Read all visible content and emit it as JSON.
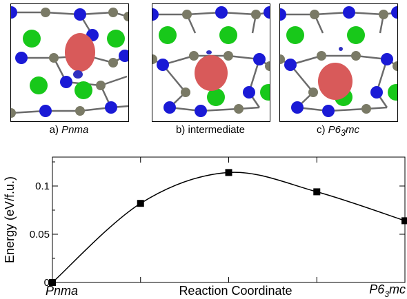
{
  "panels": [
    {
      "letter": "a)",
      "label": "Pnma",
      "label_sub": "",
      "label_tail": "",
      "italic": true
    },
    {
      "letter": "b)",
      "label": "intermediate",
      "label_sub": "",
      "label_tail": "",
      "italic": false
    },
    {
      "letter": "c)",
      "label": "P6",
      "label_sub": "3",
      "label_tail": "mc",
      "italic": true
    }
  ],
  "colors": {
    "nitrogen_blue": "#1a1ad6",
    "carbon_gray": "#7a7a66",
    "chlorine_green": "#18c81a",
    "isosurface_red": "#d85a5a",
    "isosurface_blue": "#3030c0",
    "bond_gray": "#6b6b6b"
  },
  "chart_data": {
    "type": "line",
    "ylabel": "Energy (eV/f.u.)",
    "xlabel": "Reaction Coordinate",
    "x_start_label": "Pnma",
    "x_end_label_main": "P6",
    "x_end_label_sub": "3",
    "x_end_label_tail": "mc",
    "ylim": [
      0,
      0.13
    ],
    "xlim": [
      0,
      4
    ],
    "yticks": [
      0,
      0.05,
      0.1
    ],
    "ytick_labels": [
      "0",
      "0.05",
      "0.1"
    ],
    "xticks": [
      0,
      1,
      2,
      3,
      4
    ],
    "points": [
      {
        "x": 0,
        "y": 0
      },
      {
        "x": 1,
        "y": 0.082
      },
      {
        "x": 2,
        "y": 0.114
      },
      {
        "x": 3,
        "y": 0.094
      },
      {
        "x": 4,
        "y": 0.064
      }
    ]
  }
}
